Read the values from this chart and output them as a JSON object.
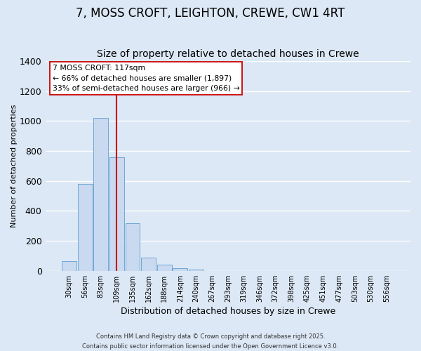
{
  "title": "7, MOSS CROFT, LEIGHTON, CREWE, CW1 4RT",
  "subtitle": "Size of property relative to detached houses in Crewe",
  "xlabel": "Distribution of detached houses by size in Crewe",
  "ylabel": "Number of detached properties",
  "bin_labels": [
    "30sqm",
    "56sqm",
    "83sqm",
    "109sqm",
    "135sqm",
    "162sqm",
    "188sqm",
    "214sqm",
    "240sqm",
    "267sqm",
    "293sqm",
    "319sqm",
    "346sqm",
    "372sqm",
    "398sqm",
    "425sqm",
    "451sqm",
    "477sqm",
    "503sqm",
    "530sqm",
    "556sqm"
  ],
  "bar_values": [
    65,
    580,
    1020,
    760,
    320,
    88,
    40,
    18,
    8,
    0,
    0,
    0,
    0,
    0,
    0,
    0,
    0,
    0,
    0,
    0,
    0
  ],
  "bar_color": "#c9d9f0",
  "bar_edge_color": "#6fa8d6",
  "background_color": "#dce8f5",
  "ylim": [
    0,
    1400
  ],
  "yticks": [
    0,
    200,
    400,
    600,
    800,
    1000,
    1200,
    1400
  ],
  "property_bin_index": 3,
  "vline_color": "#cc0000",
  "annotation_title": "7 MOSS CROFT: 117sqm",
  "annotation_line1": "← 66% of detached houses are smaller (1,897)",
  "annotation_line2": "33% of semi-detached houses are larger (966) →",
  "annotation_box_color": "#ffffff",
  "annotation_box_edge_color": "#cc0000",
  "footer_line1": "Contains HM Land Registry data © Crown copyright and database right 2025.",
  "footer_line2": "Contains public sector information licensed under the Open Government Licence v3.0.",
  "grid_color": "#ffffff",
  "title_fontsize": 12,
  "subtitle_fontsize": 10
}
